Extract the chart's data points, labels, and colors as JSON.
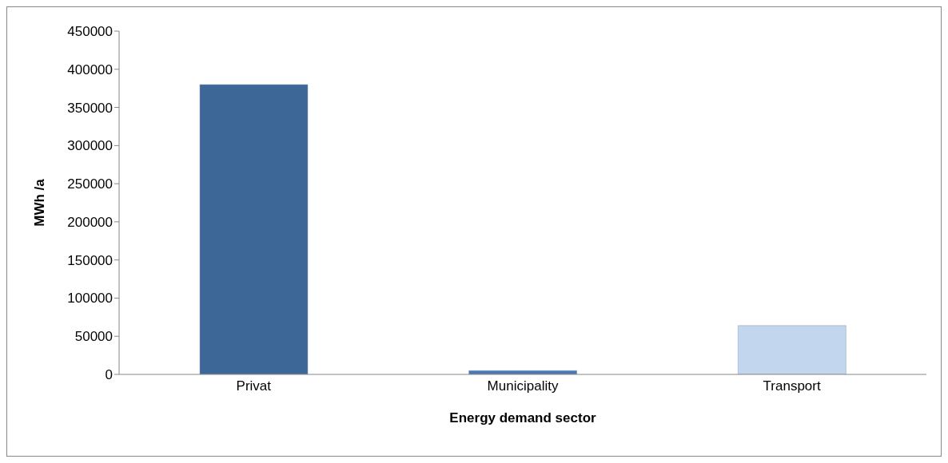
{
  "chart_data": {
    "type": "bar",
    "xlabel": "Energy demand sector",
    "ylabel": "MWh /a",
    "categories": [
      "Privat",
      "Municipality",
      "Transport"
    ],
    "values": [
      380000,
      5000,
      64000
    ],
    "colors": [
      "#3d6797",
      "#4a78b4",
      "#c2d7ee"
    ],
    "ylim": [
      0,
      450000
    ],
    "yticks": [
      0,
      50000,
      100000,
      150000,
      200000,
      250000,
      300000,
      350000,
      400000,
      450000
    ],
    "grid": false,
    "legend": false
  }
}
